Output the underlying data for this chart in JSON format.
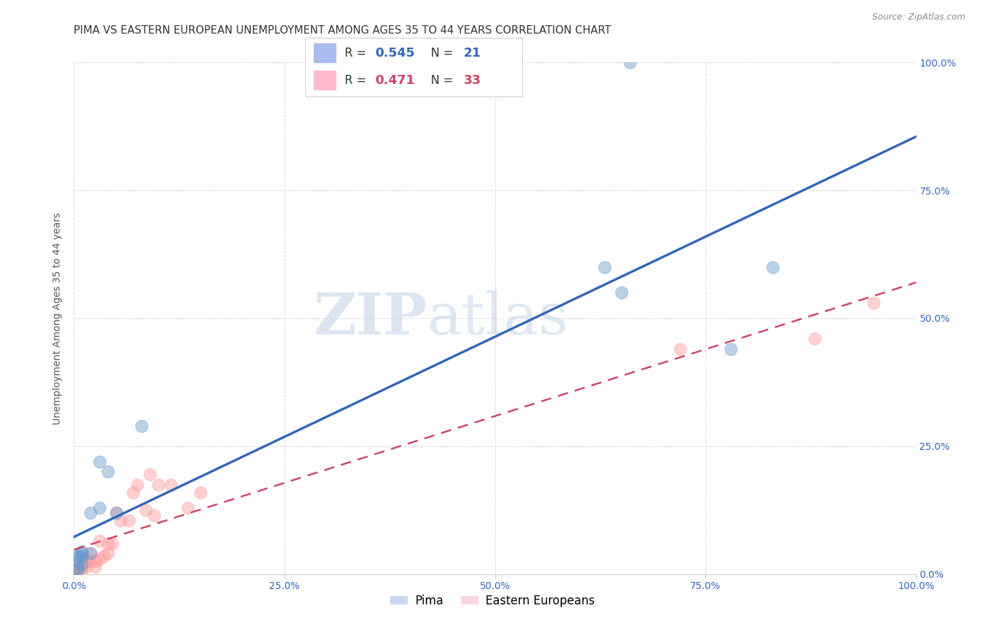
{
  "title": "PIMA VS EASTERN EUROPEAN UNEMPLOYMENT AMONG AGES 35 TO 44 YEARS CORRELATION CHART",
  "source": "Source: ZipAtlas.com",
  "ylabel": "Unemployment Among Ages 35 to 44 years",
  "xlim": [
    0,
    1.0
  ],
  "ylim": [
    0,
    1.0
  ],
  "xtick_vals": [
    0.0,
    0.25,
    0.5,
    0.75,
    1.0
  ],
  "xtick_labels": [
    "0.0%",
    "25.0%",
    "50.0%",
    "75.0%",
    "100.0%"
  ],
  "ytick_vals": [
    0.0,
    0.25,
    0.5,
    0.75,
    1.0
  ],
  "right_ytick_labels": [
    "0.0%",
    "25.0%",
    "50.0%",
    "75.0%",
    "100.0%"
  ],
  "pima_color": "#6699cc",
  "eastern_color": "#ff9999",
  "pima_line_color": "#3366bb",
  "eastern_line_color": "#cc4466",
  "pima_R": "0.545",
  "pima_N": "21",
  "eastern_R": "0.471",
  "eastern_N": "33",
  "pima_x": [
    0.08,
    0.66,
    0.03,
    0.02,
    0.01,
    0.01,
    0.005,
    0.005,
    0.005,
    0.02,
    0.05,
    0.01,
    0.01,
    0.63,
    0.78,
    0.83,
    0.65,
    0.03,
    0.04,
    0.005,
    0.005
  ],
  "pima_y": [
    0.29,
    1.0,
    0.13,
    0.04,
    0.045,
    0.035,
    0.025,
    0.035,
    0.035,
    0.12,
    0.12,
    0.02,
    0.04,
    0.6,
    0.44,
    0.6,
    0.55,
    0.22,
    0.2,
    0.01,
    0.01
  ],
  "eastern_x": [
    0.005,
    0.005,
    0.005,
    0.005,
    0.01,
    0.01,
    0.015,
    0.015,
    0.02,
    0.02,
    0.025,
    0.025,
    0.03,
    0.03,
    0.035,
    0.04,
    0.04,
    0.045,
    0.05,
    0.055,
    0.065,
    0.07,
    0.075,
    0.085,
    0.09,
    0.095,
    0.1,
    0.115,
    0.135,
    0.15,
    0.72,
    0.88,
    0.95
  ],
  "eastern_y": [
    0.005,
    0.01,
    0.01,
    0.015,
    0.01,
    0.015,
    0.015,
    0.025,
    0.025,
    0.04,
    0.015,
    0.025,
    0.03,
    0.065,
    0.035,
    0.04,
    0.06,
    0.06,
    0.12,
    0.105,
    0.105,
    0.16,
    0.175,
    0.125,
    0.195,
    0.115,
    0.175,
    0.175,
    0.13,
    0.16,
    0.44,
    0.46,
    0.53
  ],
  "watermark_zip": "ZIP",
  "watermark_atlas": "atlas",
  "background_color": "#ffffff",
  "grid_color": "#dddddd",
  "grid_style": "--",
  "title_fontsize": 11,
  "tick_fontsize": 10,
  "legend_fontsize": 13
}
